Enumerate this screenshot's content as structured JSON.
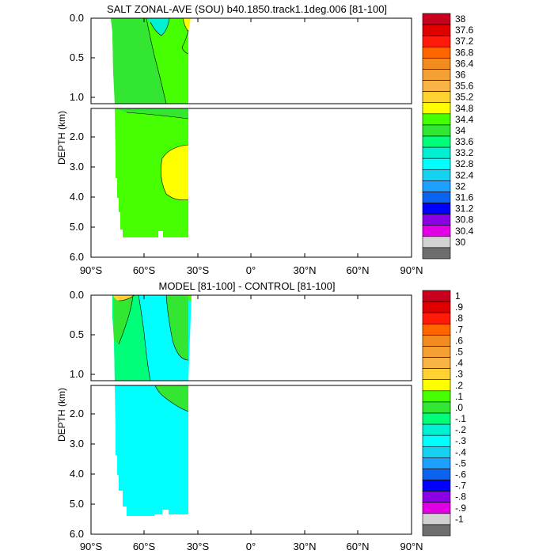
{
  "chart_data": [
    {
      "type": "contour",
      "title": "SALT ZONAL-AVE (SOU) b40.1850.track1.1deg.006 [81-100]",
      "ylabel": "DEPTH (km)",
      "x_ticks": [
        "90°S",
        "60°S",
        "30°S",
        "0°",
        "30°N",
        "60°N",
        "90°N"
      ],
      "upper_y_ticks": [
        "0.0",
        "0.5",
        "1.0"
      ],
      "lower_y_ticks": [
        "2.0",
        "3.0",
        "4.0",
        "5.0",
        "6.0"
      ],
      "upper_ylim": [
        0,
        1.1
      ],
      "lower_ylim": [
        1.3,
        6.0
      ],
      "xlim": [
        -90,
        90
      ],
      "colorbar": {
        "labels": [
          "38",
          "37.6",
          "37.2",
          "36.8",
          "36.4",
          "36",
          "35.6",
          "35.2",
          "34.8",
          "34.4",
          "34",
          "33.6",
          "33.2",
          "32.8",
          "32.4",
          "32",
          "31.6",
          "31.2",
          "30.8",
          "30.4",
          "30"
        ],
        "colors": [
          "#c8001e",
          "#e00000",
          "#ff1a0a",
          "#ff6600",
          "#f28c1e",
          "#f5a032",
          "#fab446",
          "#ffd232",
          "#ffff00",
          "#46ff00",
          "#32e632",
          "#00ff78",
          "#00f0d2",
          "#00ffff",
          "#14d2f0",
          "#1ea0ff",
          "#0a64f0",
          "#0000ff",
          "#8c00e6",
          "#e100e6",
          "#d2d2d2",
          "#6e6e6e"
        ]
      }
    },
    {
      "type": "contour",
      "title": "MODEL [81-100] - CONTROL [81-100]",
      "ylabel": "DEPTH (km)",
      "x_ticks": [
        "90°S",
        "60°S",
        "30°S",
        "0°",
        "30°N",
        "60°N",
        "90°N"
      ],
      "upper_y_ticks": [
        "0.0",
        "0.5",
        "1.0"
      ],
      "lower_y_ticks": [
        "2.0",
        "3.0",
        "4.0",
        "5.0",
        "6.0"
      ],
      "upper_ylim": [
        0,
        1.1
      ],
      "lower_ylim": [
        1.3,
        6.0
      ],
      "xlim": [
        -90,
        90
      ],
      "colorbar": {
        "labels": [
          "1",
          ".9",
          ".8",
          ".7",
          ".6",
          ".5",
          ".4",
          ".3",
          ".2",
          ".1",
          ".0",
          "-.1",
          "-.2",
          "-.3",
          "-.4",
          "-.5",
          "-.6",
          "-.7",
          "-.8",
          "-.9",
          "-1"
        ],
        "colors": [
          "#c8001e",
          "#e00000",
          "#ff1a0a",
          "#ff6600",
          "#f28c1e",
          "#f5a032",
          "#fab446",
          "#ffd232",
          "#ffff00",
          "#46ff00",
          "#32e632",
          "#00ff78",
          "#00f0d2",
          "#00ffff",
          "#14d2f0",
          "#1ea0ff",
          "#0a64f0",
          "#0000ff",
          "#8c00e6",
          "#e100e6",
          "#d2d2d2",
          "#6e6e6e"
        ]
      }
    }
  ]
}
